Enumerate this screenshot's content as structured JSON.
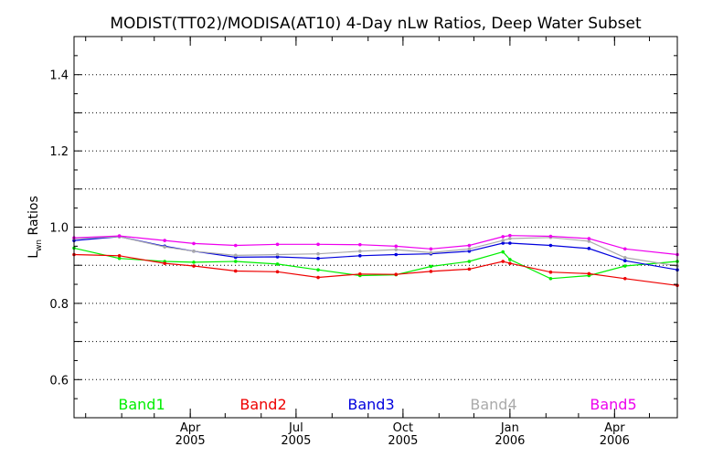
{
  "chart_data": {
    "type": "line",
    "title": "MODIST(TT02)/MODISA(AT10) 4-Day nLw Ratios, Deep Water Subset",
    "ylabel": {
      "main": "L",
      "sub": "wn",
      "rest": " Ratios"
    },
    "ylim": [
      0.5,
      1.5
    ],
    "yticks": [
      "0.6",
      "0.8",
      "1.0",
      "1.2",
      "1.4"
    ],
    "grid": true,
    "legend_position": "bottom",
    "x_range": [
      "2004-12-22",
      "2006-05-25"
    ],
    "xticks": [
      {
        "date": "2005-04-01",
        "month": "Apr",
        "year": "2005"
      },
      {
        "date": "2005-07-01",
        "month": "Jul",
        "year": "2005"
      },
      {
        "date": "2005-10-01",
        "month": "Oct",
        "year": "2005"
      },
      {
        "date": "2006-01-01",
        "month": "Jan",
        "year": "2006"
      },
      {
        "date": "2006-04-01",
        "month": "Apr",
        "year": "2006"
      }
    ],
    "x": [
      "2004-12-22",
      "2005-01-30",
      "2005-03-10",
      "2005-04-04",
      "2005-05-10",
      "2005-06-15",
      "2005-07-20",
      "2005-08-25",
      "2005-09-25",
      "2005-10-25",
      "2005-11-27",
      "2005-12-26",
      "2006-01-01",
      "2006-02-05",
      "2006-03-10",
      "2006-04-10",
      "2006-05-25"
    ],
    "series": [
      {
        "name": "Band1",
        "color": "#00ee00",
        "values": [
          0.945,
          0.918,
          0.91,
          0.908,
          0.91,
          0.903,
          0.888,
          0.873,
          0.875,
          0.897,
          0.91,
          0.935,
          0.915,
          0.865,
          0.873,
          0.898,
          0.91
        ]
      },
      {
        "name": "Band2",
        "color": "#ee0000",
        "values": [
          0.928,
          0.925,
          0.905,
          0.898,
          0.885,
          0.883,
          0.868,
          0.877,
          0.876,
          0.884,
          0.89,
          0.91,
          0.905,
          0.882,
          0.878,
          0.865,
          0.847
        ]
      },
      {
        "name": "Band3",
        "color": "#0000dd",
        "values": [
          0.965,
          0.975,
          0.95,
          0.937,
          0.921,
          0.922,
          0.918,
          0.925,
          0.928,
          0.93,
          0.937,
          0.958,
          0.958,
          0.952,
          0.944,
          0.912,
          0.888
        ]
      },
      {
        "name": "Band4",
        "color": "#aaaaaa",
        "values": [
          0.97,
          0.975,
          0.948,
          0.937,
          0.926,
          0.928,
          0.93,
          0.937,
          0.941,
          0.933,
          0.943,
          0.965,
          0.97,
          0.973,
          0.963,
          0.92,
          0.898
        ]
      },
      {
        "name": "Band5",
        "color": "#ee00ee",
        "values": [
          0.972,
          0.977,
          0.965,
          0.957,
          0.952,
          0.955,
          0.955,
          0.954,
          0.95,
          0.943,
          0.952,
          0.975,
          0.978,
          0.976,
          0.97,
          0.943,
          0.928
        ]
      }
    ]
  }
}
